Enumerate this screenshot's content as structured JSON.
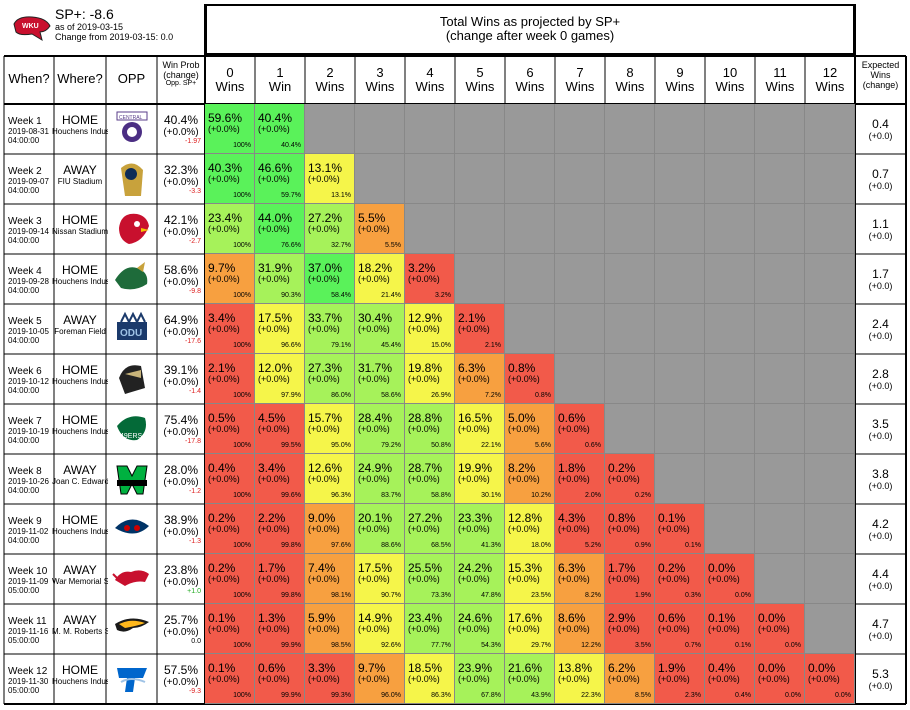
{
  "header": {
    "sp_label": "SP+:",
    "sp_value": "-8.6",
    "as_of": "as of 2019-03-15",
    "change_from": "Change from 2019-03-15: 0.0",
    "title_line1": "Total Wins as projected by SP+",
    "title_line2": "(change after week 0 games)"
  },
  "columns": {
    "when": "When?",
    "where": "Where?",
    "opp": "OPP",
    "winprob_1": "Win Prob",
    "winprob_2": "(change)",
    "winprob_3": "Opp. SP+",
    "wins": [
      {
        "n": "0",
        "l": "Wins"
      },
      {
        "n": "1",
        "l": "Win"
      },
      {
        "n": "2",
        "l": "Wins"
      },
      {
        "n": "3",
        "l": "Wins"
      },
      {
        "n": "4",
        "l": "Wins"
      },
      {
        "n": "5",
        "l": "Wins"
      },
      {
        "n": "6",
        "l": "Wins"
      },
      {
        "n": "7",
        "l": "Wins"
      },
      {
        "n": "8",
        "l": "Wins"
      },
      {
        "n": "9",
        "l": "Wins"
      },
      {
        "n": "10",
        "l": "Wins"
      },
      {
        "n": "11",
        "l": "Wins"
      },
      {
        "n": "12",
        "l": "Wins"
      }
    ],
    "expected_1": "Expected",
    "expected_2": "Wins",
    "expected_3": "(change)"
  },
  "colors": {
    "red": "#f25a4a",
    "orange": "#f7a040",
    "yellow": "#f5f54a",
    "lgreen": "#a6f25a",
    "green": "#5af25a",
    "gray": "#999999"
  },
  "rows": [
    {
      "week": "Week 1",
      "date": "2019-08-31",
      "time": "04:00:00",
      "where": "HOME",
      "stadium": "Houchens Industries-L. T. Smith Stadium",
      "opp_icon": "central-arkansas-logo-icon",
      "wp": "40.4%",
      "wpc": "(+0.0%)",
      "opp_sp": "-1.97",
      "exp": "0.4",
      "expc": "(+0.0)",
      "cells": [
        [
          "59.6%",
          "100%"
        ],
        [
          "40.4%",
          "40.4%"
        ]
      ]
    },
    {
      "week": "Week 2",
      "date": "2019-09-07",
      "time": "04:00:00",
      "where": "AWAY",
      "stadium": "FIU Stadium",
      "opp_icon": "fiu-panther-logo-icon",
      "wp": "32.3%",
      "wpc": "(+0.0%)",
      "opp_sp": "-3.3",
      "exp": "0.7",
      "expc": "(+0.0)",
      "cells": [
        [
          "40.3%",
          "100%"
        ],
        [
          "46.6%",
          "59.7%"
        ],
        [
          "13.1%",
          "13.1%"
        ]
      ]
    },
    {
      "week": "Week 3",
      "date": "2019-09-14",
      "time": "04:00:00",
      "where": "HOME",
      "stadium": "Nissan Stadium",
      "opp_icon": "louisville-cardinal-logo-icon",
      "wp": "42.1%",
      "wpc": "(+0.0%)",
      "opp_sp": "-2.7",
      "exp": "1.1",
      "expc": "(+0.0)",
      "cells": [
        [
          "23.4%",
          "100%"
        ],
        [
          "44.0%",
          "76.6%"
        ],
        [
          "27.2%",
          "32.7%"
        ],
        [
          "5.5%",
          "5.5%"
        ]
      ]
    },
    {
      "week": "Week 4",
      "date": "2019-09-28",
      "time": "04:00:00",
      "where": "HOME",
      "stadium": "Houchens Industries-L. T. Smith Stadium",
      "opp_icon": "uab-dragon-logo-icon",
      "wp": "58.6%",
      "wpc": "(+0.0%)",
      "opp_sp": "-9.8",
      "exp": "1.7",
      "expc": "(+0.0)",
      "cells": [
        [
          "9.7%",
          "100%"
        ],
        [
          "31.9%",
          "90.3%"
        ],
        [
          "37.0%",
          "58.4%"
        ],
        [
          "18.2%",
          "21.4%"
        ],
        [
          "3.2%",
          "3.2%"
        ]
      ]
    },
    {
      "week": "Week 5",
      "date": "2019-10-05",
      "time": "04:00:00",
      "where": "AWAY",
      "stadium": "Foreman Field",
      "opp_icon": "odu-logo-icon",
      "wp": "64.9%",
      "wpc": "(+0.0%)",
      "opp_sp": "-17.6",
      "exp": "2.4",
      "expc": "(+0.0)",
      "cells": [
        [
          "3.4%",
          "100%"
        ],
        [
          "17.5%",
          "96.6%"
        ],
        [
          "33.7%",
          "79.1%"
        ],
        [
          "30.4%",
          "45.4%"
        ],
        [
          "12.9%",
          "15.0%"
        ],
        [
          "2.1%",
          "2.1%"
        ]
      ]
    },
    {
      "week": "Week 6",
      "date": "2019-10-12",
      "time": "04:00:00",
      "where": "HOME",
      "stadium": "Houchens Industries-L. T. Smith Stadium",
      "opp_icon": "army-knight-logo-icon",
      "wp": "39.1%",
      "wpc": "(+0.0%)",
      "opp_sp": "-1.4",
      "exp": "2.8",
      "expc": "(+0.0)",
      "cells": [
        [
          "2.1%",
          "100%"
        ],
        [
          "12.0%",
          "97.9%"
        ],
        [
          "27.3%",
          "86.0%"
        ],
        [
          "31.7%",
          "58.6%"
        ],
        [
          "19.8%",
          "26.9%"
        ],
        [
          "6.3%",
          "7.2%"
        ],
        [
          "0.8%",
          "0.8%"
        ]
      ]
    },
    {
      "week": "Week 7",
      "date": "2019-10-19",
      "time": "04:00:00",
      "where": "HOME",
      "stadium": "Houchens Industries-L. T. Smith Stadium",
      "opp_icon": "charlotte-49ers-logo-icon",
      "wp": "75.4%",
      "wpc": "(+0.0%)",
      "opp_sp": "-17.8",
      "exp": "3.5",
      "expc": "(+0.0)",
      "cells": [
        [
          "0.5%",
          "100%"
        ],
        [
          "4.5%",
          "99.5%"
        ],
        [
          "15.7%",
          "95.0%"
        ],
        [
          "28.4%",
          "79.2%"
        ],
        [
          "28.8%",
          "50.8%"
        ],
        [
          "16.5%",
          "22.1%"
        ],
        [
          "5.0%",
          "5.6%"
        ],
        [
          "0.6%",
          "0.6%"
        ]
      ]
    },
    {
      "week": "Week 8",
      "date": "2019-10-26",
      "time": "04:00:00",
      "where": "AWAY",
      "stadium": "Joan C. Edwards Stadium",
      "opp_icon": "marshall-herd-logo-icon",
      "wp": "28.0%",
      "wpc": "(+0.0%)",
      "opp_sp": "-1.2",
      "exp": "3.8",
      "expc": "(+0.0)",
      "cells": [
        [
          "0.4%",
          "100%"
        ],
        [
          "3.4%",
          "99.6%"
        ],
        [
          "12.6%",
          "96.3%"
        ],
        [
          "24.9%",
          "83.7%"
        ],
        [
          "28.7%",
          "58.8%"
        ],
        [
          "19.9%",
          "30.1%"
        ],
        [
          "8.2%",
          "10.2%"
        ],
        [
          "1.8%",
          "2.0%"
        ],
        [
          "0.2%",
          "0.2%"
        ]
      ]
    },
    {
      "week": "Week 9",
      "date": "2019-11-02",
      "time": "04:00:00",
      "where": "HOME",
      "stadium": "Houchens Industries-L. T. Smith Stadium",
      "opp_icon": "fau-owl-logo-icon",
      "wp": "38.9%",
      "wpc": "(+0.0%)",
      "opp_sp": "-1.3",
      "exp": "4.2",
      "expc": "(+0.0)",
      "cells": [
        [
          "0.2%",
          "100%"
        ],
        [
          "2.2%",
          "99.8%"
        ],
        [
          "9.0%",
          "97.6%"
        ],
        [
          "20.1%",
          "88.6%"
        ],
        [
          "27.2%",
          "68.5%"
        ],
        [
          "23.3%",
          "41.3%"
        ],
        [
          "12.8%",
          "18.0%"
        ],
        [
          "4.3%",
          "5.2%"
        ],
        [
          "0.8%",
          "0.9%"
        ],
        [
          "0.1%",
          "0.1%"
        ]
      ]
    },
    {
      "week": "Week 10",
      "date": "2019-11-09",
      "time": "05:00:00",
      "where": "AWAY",
      "stadium": "War Memorial Stadium / Razorback Stadium",
      "opp_icon": "arkansas-razorback-logo-icon",
      "wp": "23.8%",
      "wpc": "(+0.0%)",
      "opp_sp": "+1.0",
      "exp": "4.4",
      "expc": "(+0.0)",
      "cells": [
        [
          "0.2%",
          "100%"
        ],
        [
          "1.7%",
          "99.8%"
        ],
        [
          "7.4%",
          "98.1%"
        ],
        [
          "17.5%",
          "90.7%"
        ],
        [
          "25.5%",
          "73.3%"
        ],
        [
          "24.2%",
          "47.8%"
        ],
        [
          "15.3%",
          "23.5%"
        ],
        [
          "6.3%",
          "8.2%"
        ],
        [
          "1.7%",
          "1.9%"
        ],
        [
          "0.2%",
          "0.3%"
        ],
        [
          "0.0%",
          "0.0%"
        ]
      ]
    },
    {
      "week": "Week 11",
      "date": "2019-11-16",
      "time": "05:00:00",
      "where": "AWAY",
      "stadium": "M. M. Roberts Stadium",
      "opp_icon": "southern-miss-eagle-logo-icon",
      "wp": "25.7%",
      "wpc": "(+0.0%)",
      "opp_sp": "0.0",
      "exp": "4.7",
      "expc": "(+0.0)",
      "cells": [
        [
          "0.1%",
          "100%"
        ],
        [
          "1.3%",
          "99.9%"
        ],
        [
          "5.9%",
          "98.5%"
        ],
        [
          "14.9%",
          "92.6%"
        ],
        [
          "23.4%",
          "77.7%"
        ],
        [
          "24.6%",
          "54.3%"
        ],
        [
          "17.6%",
          "29.7%"
        ],
        [
          "8.6%",
          "12.2%"
        ],
        [
          "2.9%",
          "3.5%"
        ],
        [
          "0.6%",
          "0.7%"
        ],
        [
          "0.1%",
          "0.1%"
        ],
        [
          "0.0%",
          "0.0%"
        ]
      ]
    },
    {
      "week": "Week 12",
      "date": "2019-11-30",
      "time": "05:00:00",
      "where": "HOME",
      "stadium": "Houchens Industries-L. T. Smith Stadium",
      "opp_icon": "mtsu-logo-icon",
      "wp": "57.5%",
      "wpc": "(+0.0%)",
      "opp_sp": "-9.3",
      "exp": "5.3",
      "expc": "(+0.0)",
      "cells": [
        [
          "0.1%",
          "100%"
        ],
        [
          "0.6%",
          "99.9%"
        ],
        [
          "3.3%",
          "99.3%"
        ],
        [
          "9.7%",
          "96.0%"
        ],
        [
          "18.5%",
          "86.3%"
        ],
        [
          "23.9%",
          "67.8%"
        ],
        [
          "21.6%",
          "43.9%"
        ],
        [
          "13.8%",
          "22.3%"
        ],
        [
          "6.2%",
          "8.5%"
        ],
        [
          "1.9%",
          "2.3%"
        ],
        [
          "0.4%",
          "0.4%"
        ],
        [
          "0.0%",
          "0.0%"
        ],
        [
          "0.0%",
          "0.0%"
        ]
      ]
    }
  ]
}
